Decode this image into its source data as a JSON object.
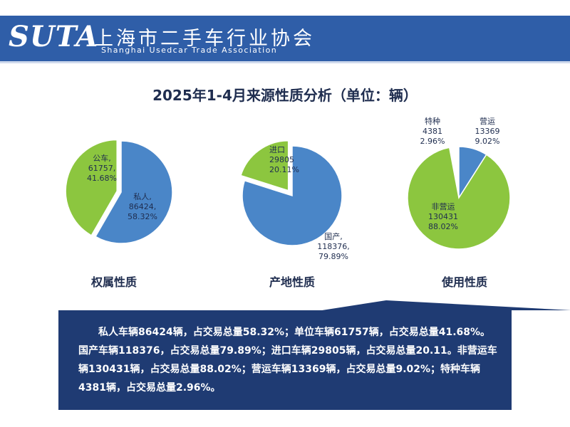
{
  "header": {
    "logo": "SUTA",
    "org_name_cn": "上海市二手车行业协会",
    "org_name_en": "Shanghai Usedcar Trade Association"
  },
  "page_title": "2025年1-4月来源性质分析（单位：辆）",
  "colors": {
    "blue": "#4a86c8",
    "green": "#8cc63f",
    "white": "#ffffff",
    "label": "#1f2d4f"
  },
  "chart_data": [
    {
      "type": "pie",
      "title": "权属性质",
      "slices": [
        {
          "name": "私人",
          "value": 86424,
          "percent": "58.32%",
          "label_value": "86424,",
          "label_name": "私人,",
          "color": "#4a86c8"
        },
        {
          "name": "公车",
          "value": 61757,
          "percent": "41.68%",
          "label_value": "61757,",
          "label_name": "公车,",
          "color": "#8cc63f"
        }
      ]
    },
    {
      "type": "pie",
      "title": "产地性质",
      "slices": [
        {
          "name": "国产",
          "value": 118376,
          "percent": "79.89%",
          "label_value": "118376,",
          "label_name": "国产,",
          "color": "#4a86c8"
        },
        {
          "name": "进口",
          "value": 29805,
          "percent": "20.11%",
          "label_value": "29805",
          "label_name": "进口",
          "color": "#8cc63f"
        }
      ]
    },
    {
      "type": "pie",
      "title": "使用性质",
      "slices": [
        {
          "name": "营运",
          "value": 13369,
          "percent": "9.02%",
          "label_value": "13369",
          "label_name": "营运",
          "color": "#4a86c8"
        },
        {
          "name": "非营运",
          "value": 130431,
          "percent": "88.02%",
          "label_value": "130431",
          "label_name": "非营运",
          "color": "#8cc63f"
        },
        {
          "name": "特种",
          "value": 4381,
          "percent": "2.96%",
          "label_value": "4381",
          "label_name": "特种",
          "color": "#ffffff"
        }
      ]
    }
  ],
  "summary": "私人车辆86424辆，占交易总量58.32%；单位车辆61757辆，占交易总量41.68%。国产车辆118376，占交易总量79.89%；进口车辆29805辆，占交易总量20.11。非营运车辆130431辆，占交易总量88.02%；营运车辆13369辆，占交易总量9.02%；特种车辆4381辆，占交易总量2.96%。"
}
